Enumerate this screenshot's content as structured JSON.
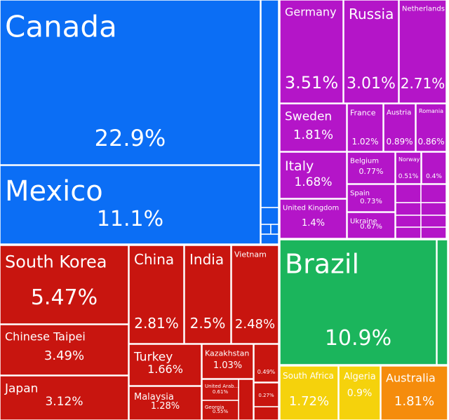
{
  "chart_data": {
    "type": "treemap",
    "categories": [
      "Canada",
      "Mexico",
      "Germany",
      "Russia",
      "Netherlands",
      "Sweden",
      "France",
      "Austria",
      "Romania",
      "Italy",
      "Belgium",
      "Norway",
      null,
      "Spain",
      "United Kingdom",
      "Ukraine",
      "South Korea",
      "China",
      "India",
      "Vietnam",
      "Chinese Taipei",
      "Turkey",
      "Kazakhstan",
      null,
      "Japan",
      "Malaysia",
      "United Arab...",
      null,
      "Georgia",
      "Brazil",
      "South Africa",
      "Algeria",
      "Australia"
    ],
    "values": [
      22.9,
      11.1,
      3.51,
      3.01,
      2.71,
      1.81,
      1.02,
      0.89,
      0.86,
      1.68,
      0.77,
      0.51,
      0.4,
      0.73,
      1.4,
      0.67,
      5.47,
      2.81,
      2.5,
      2.48,
      3.49,
      1.66,
      1.03,
      0.49,
      3.12,
      1.28,
      0.61,
      0.27,
      0.55,
      10.9,
      1.72,
      0.9,
      1.81
    ],
    "value_labels": [
      "22.9%",
      "11.1%",
      "3.51%",
      "3.01%",
      "2.71%",
      "1.81%",
      "1.02%",
      "0.89%",
      "0.86%",
      "1.68%",
      "0.77%",
      "0.51%",
      "0.4%",
      "0.73%",
      "1.4%",
      "0.67%",
      "5.47%",
      "2.81%",
      "2.5%",
      "2.48%",
      "3.49%",
      "1.66%",
      "1.03%",
      "0.49%",
      "3.12%",
      "1.28%",
      "0.61%",
      "0.27%",
      "0.55%",
      "10.9%",
      "1.72%",
      "0.9%",
      "1.81%"
    ],
    "colors": [
      "#0b6ef5",
      "#0b6ef5",
      "#b415c8",
      "#b415c8",
      "#b415c8",
      "#b415c8",
      "#b415c8",
      "#b415c8",
      "#b415c8",
      "#b415c8",
      "#b415c8",
      "#b415c8",
      "#b415c8",
      "#b415c8",
      "#b415c8",
      "#b415c8",
      "#c8150f",
      "#c8150f",
      "#c8150f",
      "#c8150f",
      "#c8150f",
      "#c8150f",
      "#c8150f",
      "#c8150f",
      "#c8150f",
      "#c8150f",
      "#c8150f",
      "#c8150f",
      "#c8150f",
      "#1bb55c",
      "#f5d20c",
      "#f5d20c",
      "#f58c0c"
    ]
  }
}
